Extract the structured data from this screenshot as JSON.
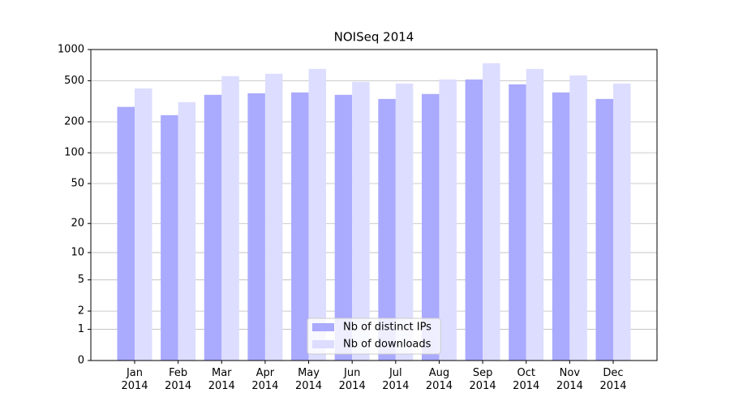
{
  "chart_data": {
    "type": "bar",
    "title": "NOISeq 2014",
    "categories": [
      "Jan 2014",
      "Feb 2014",
      "Mar 2014",
      "Apr 2014",
      "May 2014",
      "Jun 2014",
      "Jul 2014",
      "Aug 2014",
      "Sep 2014",
      "Oct 2014",
      "Nov 2014",
      "Dec 2014"
    ],
    "series": [
      {
        "name": "Nb of distinct IPs",
        "color": "#aaaaff",
        "values": [
          279,
          232,
          365,
          378,
          385,
          365,
          333,
          372,
          514,
          461,
          385,
          333
        ]
      },
      {
        "name": "Nb of downloads",
        "color": "#ddddff",
        "values": [
          421,
          310,
          553,
          584,
          650,
          487,
          469,
          514,
          738,
          650,
          562,
          469
        ]
      }
    ],
    "yscale": "log1p",
    "ylim": [
      0,
      1000
    ],
    "yticks": [
      0,
      1,
      2,
      5,
      10,
      20,
      50,
      100,
      200,
      500,
      1000
    ],
    "grid": true,
    "legend": "lower center"
  }
}
